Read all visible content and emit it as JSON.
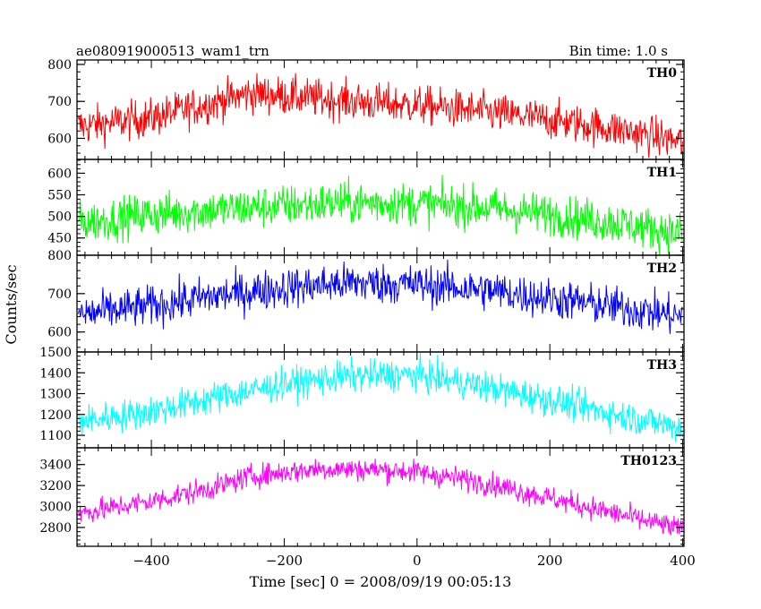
{
  "header": {
    "title": "ae080919000513_wam1_trn",
    "bin_time": "Bin time: 1.0 s"
  },
  "chart_data": {
    "type": "line",
    "xlabel": "Time [sec] 0 = 2008/09/19 00:05:13",
    "ylabel": "Counts/sec",
    "xlim": [
      -512,
      402
    ],
    "x_ticks": [
      -400,
      -200,
      0,
      200,
      400
    ],
    "x_tick_labels": [
      "−400",
      "−200",
      "0",
      "200",
      "400"
    ],
    "x_step": 1.0,
    "panels": [
      {
        "name": "TH0",
        "color": "#ff0000",
        "ylim": [
          543,
          812
        ],
        "yticks": [
          600,
          700,
          800
        ],
        "ytick_labels": [
          "600",
          "700",
          "800"
        ],
        "trend": [
          [
            -510,
            632
          ],
          [
            -400,
            655
          ],
          [
            -300,
            700
          ],
          [
            -250,
            722
          ],
          [
            -150,
            708
          ],
          [
            -50,
            694
          ],
          [
            0,
            690
          ],
          [
            100,
            672
          ],
          [
            200,
            650
          ],
          [
            300,
            625
          ],
          [
            400,
            590
          ]
        ],
        "noise": 26
      },
      {
        "name": "TH1",
        "color": "#00ff00",
        "ylim": [
          410,
          632
        ],
        "yticks": [
          450,
          500,
          550,
          600
        ],
        "ytick_labels": [
          "450",
          "500",
          "550",
          "600"
        ],
        "trend": [
          [
            -510,
            485
          ],
          [
            -400,
            505
          ],
          [
            -300,
            515
          ],
          [
            -200,
            525
          ],
          [
            -100,
            532
          ],
          [
            0,
            530
          ],
          [
            100,
            520
          ],
          [
            200,
            505
          ],
          [
            300,
            485
          ],
          [
            400,
            460
          ]
        ],
        "noise": 24
      },
      {
        "name": "TH2",
        "color": "#0000ff",
        "ylim": [
          548,
          800
        ],
        "yticks": [
          600,
          700,
          800
        ],
        "ytick_labels": [
          "600",
          "700",
          "800"
        ],
        "trend": [
          [
            -510,
            645
          ],
          [
            -400,
            668
          ],
          [
            -300,
            695
          ],
          [
            -200,
            715
          ],
          [
            -100,
            728
          ],
          [
            0,
            724
          ],
          [
            100,
            710
          ],
          [
            200,
            688
          ],
          [
            300,
            665
          ],
          [
            400,
            640
          ]
        ],
        "noise": 26
      },
      {
        "name": "TH3",
        "color": "#00ffff",
        "ylim": [
          1040,
          1500
        ],
        "yticks": [
          1100,
          1200,
          1300,
          1400,
          1500
        ],
        "ytick_labels": [
          "1100",
          "1200",
          "1300",
          "1400",
          "1500"
        ],
        "trend": [
          [
            -510,
            1165
          ],
          [
            -400,
            1215
          ],
          [
            -300,
            1285
          ],
          [
            -200,
            1345
          ],
          [
            -100,
            1385
          ],
          [
            0,
            1390
          ],
          [
            100,
            1335
          ],
          [
            200,
            1270
          ],
          [
            300,
            1200
          ],
          [
            400,
            1135
          ]
        ],
        "noise": 38
      },
      {
        "name": "TH0123",
        "color": "#ff00ff",
        "ylim": [
          2620,
          3560
        ],
        "yticks": [
          2800,
          3000,
          3200,
          3400
        ],
        "ytick_labels": [
          "2800",
          "3000",
          "3200",
          "3400"
        ],
        "trend": [
          [
            -510,
            2935
          ],
          [
            -400,
            3050
          ],
          [
            -300,
            3190
          ],
          [
            -250,
            3290
          ],
          [
            -150,
            3360
          ],
          [
            -50,
            3350
          ],
          [
            0,
            3330
          ],
          [
            100,
            3230
          ],
          [
            200,
            3080
          ],
          [
            300,
            2930
          ],
          [
            400,
            2780
          ]
        ],
        "noise": 55
      }
    ]
  }
}
